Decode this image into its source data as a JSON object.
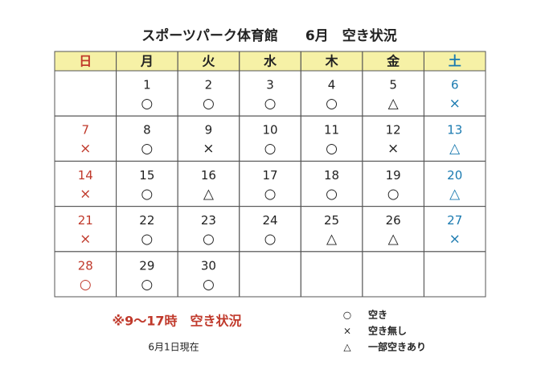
{
  "title": "スポーツパーク体育館　　6月　空き状況",
  "weekdays": [
    "日",
    "月",
    "火",
    "水",
    "木",
    "金",
    "土"
  ],
  "weeks": [
    [
      null,
      {
        "day": 1,
        "status": "○"
      },
      {
        "day": 2,
        "status": "○"
      },
      {
        "day": 3,
        "status": "○"
      },
      {
        "day": 4,
        "status": "○"
      },
      {
        "day": 5,
        "status": "△"
      },
      {
        "day": 6,
        "status": "×"
      }
    ],
    [
      {
        "day": 7,
        "status": "×"
      },
      {
        "day": 8,
        "status": "○"
      },
      {
        "day": 9,
        "status": "×"
      },
      {
        "day": 10,
        "status": "○"
      },
      {
        "day": 11,
        "status": "○"
      },
      {
        "day": 12,
        "status": "×"
      },
      {
        "day": 13,
        "status": "△"
      }
    ],
    [
      {
        "day": 14,
        "status": "×"
      },
      {
        "day": 15,
        "status": "○"
      },
      {
        "day": 16,
        "status": "△"
      },
      {
        "day": 17,
        "status": "○"
      },
      {
        "day": 18,
        "status": "○"
      },
      {
        "day": 19,
        "status": "○"
      },
      {
        "day": 20,
        "status": "△"
      }
    ],
    [
      {
        "day": 21,
        "status": "×"
      },
      {
        "day": 22,
        "status": "○"
      },
      {
        "day": 23,
        "status": "○"
      },
      {
        "day": 24,
        "status": "○"
      },
      {
        "day": 25,
        "status": "△"
      },
      {
        "day": 26,
        "status": "△"
      },
      {
        "day": 27,
        "status": "×"
      }
    ],
    [
      {
        "day": 28,
        "status": "○"
      },
      {
        "day": 29,
        "status": "○"
      },
      {
        "day": 30,
        "status": "○"
      },
      null,
      null,
      null,
      null
    ]
  ],
  "note": "※9～17時　空き状況",
  "as_of": "6月1日現在",
  "legend": [
    {
      "symbol": "○",
      "label": "空き"
    },
    {
      "symbol": "×",
      "label": "空き無し"
    },
    {
      "symbol": "△",
      "label": "一部空きあり"
    }
  ]
}
